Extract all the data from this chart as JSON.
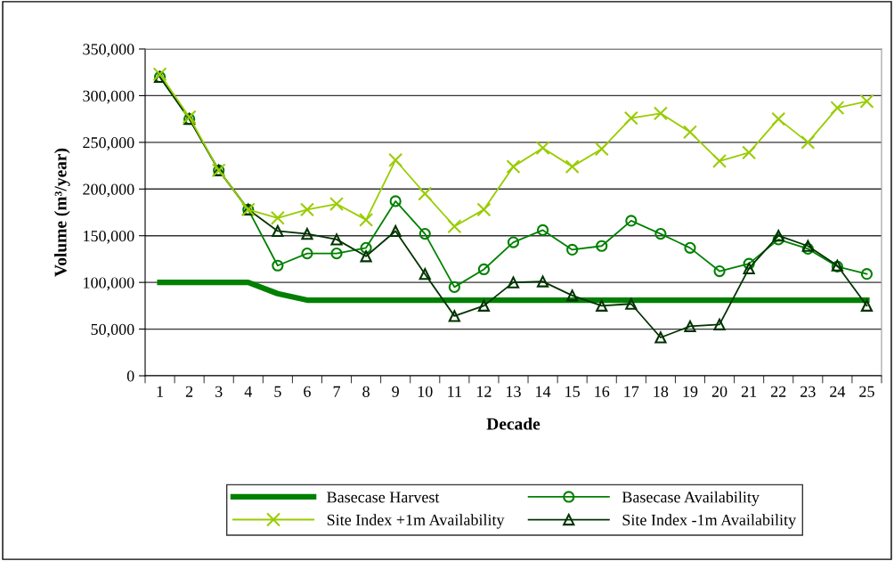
{
  "chart_data": {
    "type": "line",
    "xlabel": "Decade",
    "ylabel": "Volume (m³/year)",
    "categories": [
      "1",
      "2",
      "3",
      "4",
      "5",
      "6",
      "7",
      "8",
      "9",
      "10",
      "11",
      "12",
      "13",
      "14",
      "15",
      "16",
      "17",
      "18",
      "19",
      "20",
      "21",
      "22",
      "23",
      "24",
      "25"
    ],
    "ylim": [
      0,
      350000
    ],
    "yticks": [
      {
        "value": 0,
        "label": "0"
      },
      {
        "value": 50000,
        "label": "50,000"
      },
      {
        "value": 100000,
        "label": "100,000"
      },
      {
        "value": 150000,
        "label": "150,000"
      },
      {
        "value": 200000,
        "label": "200,000"
      },
      {
        "value": 250000,
        "label": "250,000"
      },
      {
        "value": 300000,
        "label": "300,000"
      },
      {
        "value": 350000,
        "label": "350,000"
      }
    ],
    "grid": "y",
    "legend": "bottom",
    "series": [
      {
        "name": "Basecase Harvest",
        "color": "#008000",
        "marker": "none",
        "values": [
          100000,
          100000,
          100000,
          100000,
          88000,
          81000,
          81000,
          81000,
          81000,
          81000,
          81000,
          81000,
          81000,
          81000,
          81000,
          81000,
          81000,
          81000,
          81000,
          81000,
          81000,
          81000,
          81000,
          81000,
          81000
        ]
      },
      {
        "name": "Basecase Availability",
        "color": "#008000",
        "marker": "circle",
        "values": [
          320000,
          275000,
          220000,
          178000,
          118000,
          131000,
          131000,
          137000,
          187000,
          152000,
          95000,
          114000,
          143000,
          156000,
          135000,
          139000,
          166000,
          152000,
          137000,
          112000,
          120000,
          146000,
          136000,
          117000,
          109000
        ]
      },
      {
        "name": "Site Index +1m Availability",
        "color": "#99cc00",
        "marker": "cross",
        "values": [
          323000,
          277000,
          220000,
          178000,
          169000,
          178000,
          184000,
          167000,
          231000,
          195000,
          160000,
          178000,
          224000,
          244000,
          224000,
          243000,
          276000,
          281000,
          261000,
          230000,
          239000,
          275000,
          250000,
          287000,
          294000
        ]
      },
      {
        "name": "Site Index -1m Availability",
        "color": "#003300",
        "marker": "triangle",
        "values": [
          320000,
          275000,
          220000,
          178000,
          155000,
          152000,
          146000,
          128000,
          155000,
          109000,
          64000,
          75000,
          100000,
          101000,
          86000,
          75000,
          77000,
          41000,
          53000,
          55000,
          115000,
          150000,
          139000,
          118000,
          75000
        ]
      }
    ]
  }
}
